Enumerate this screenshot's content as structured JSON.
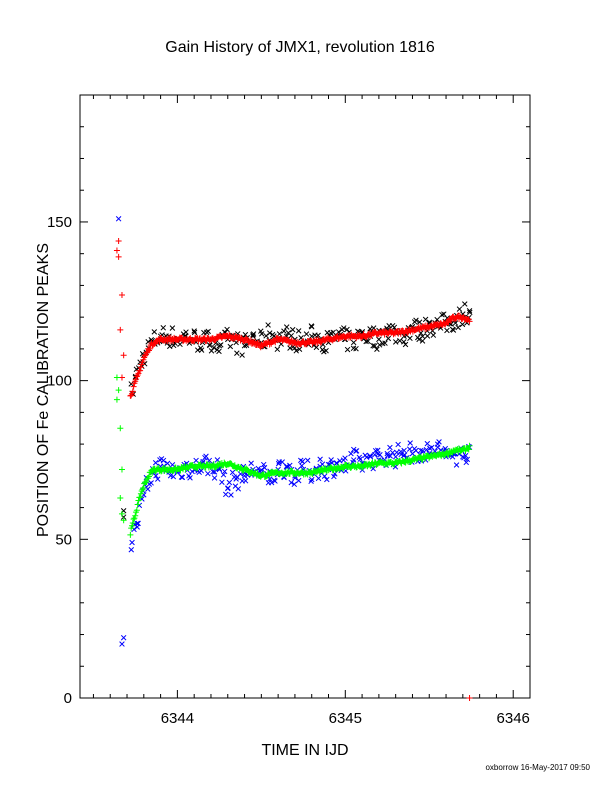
{
  "chart_data": {
    "type": "scatter",
    "title": "Gain History of JMX1, revolution 1816",
    "xlabel": "TIME IN IJD",
    "ylabel": "POSITION OF Fe CALIBRATION PEAKS",
    "xlim": [
      6343.42,
      6346.1
    ],
    "ylim": [
      0,
      190
    ],
    "xticks": [
      6344,
      6345,
      6346
    ],
    "yticks": [
      0,
      50,
      100,
      150
    ],
    "grid": false,
    "legend": "none",
    "footer": "oxborrow 16-May-2017 09:50",
    "colors": {
      "upper_raw": "#000000",
      "upper_fit": "#ff0000",
      "lower_raw": "#0000ff",
      "lower_fit": "#00ff00"
    },
    "early_markers": {
      "black_x": [
        [
          6343.68,
          59
        ],
        [
          6343.68,
          57
        ]
      ],
      "blue_x": [
        [
          6343.65,
          151
        ],
        [
          6343.68,
          19
        ],
        [
          6343.67,
          17
        ]
      ],
      "red_plus": [
        [
          6343.65,
          144
        ],
        [
          6343.64,
          141
        ],
        [
          6343.65,
          139
        ],
        [
          6343.67,
          127
        ],
        [
          6343.66,
          116
        ],
        [
          6343.68,
          108
        ],
        [
          6343.67,
          101
        ]
      ],
      "green_plus": [
        [
          6343.64,
          101
        ],
        [
          6343.65,
          97
        ],
        [
          6343.64,
          94
        ],
        [
          6343.66,
          85
        ],
        [
          6343.67,
          72
        ],
        [
          6343.66,
          63
        ],
        [
          6343.67,
          58
        ],
        [
          6343.68,
          56
        ]
      ],
      "red_plus_end": [
        [
          6345.74,
          0
        ]
      ]
    },
    "series": [
      {
        "marker": "x",
        "color": "#000000",
        "x": [
          6343.73,
          6343.75,
          6343.8,
          6343.85,
          6343.9,
          6343.95,
          6344.0,
          6344.05,
          6344.1,
          6344.15,
          6344.2,
          6344.25,
          6344.3,
          6344.35,
          6344.4,
          6344.45,
          6344.5,
          6344.55,
          6344.6,
          6344.65,
          6344.7,
          6344.75,
          6344.8,
          6344.85,
          6344.9,
          6344.95,
          6345.0,
          6345.05,
          6345.1,
          6345.15,
          6345.2,
          6345.25,
          6345.3,
          6345.35,
          6345.4,
          6345.45,
          6345.5,
          6345.55,
          6345.6,
          6345.65,
          6345.7,
          6345.74
        ],
        "y": [
          96,
          101,
          108,
          112,
          114,
          114,
          113,
          114,
          113,
          112,
          113,
          111,
          113,
          112,
          111,
          114,
          112,
          115,
          113,
          114,
          113,
          112,
          114,
          113,
          112,
          114,
          113,
          112,
          115,
          114,
          113,
          116,
          115,
          114,
          117,
          115,
          118,
          117,
          118,
          119,
          121,
          122
        ]
      },
      {
        "marker": "dense",
        "color": "#ff0000",
        "x": [
          6343.72,
          6343.74,
          6343.76,
          6343.78,
          6343.8,
          6343.82,
          6343.84,
          6343.86,
          6343.9,
          6344.0,
          6344.1,
          6344.2,
          6344.3,
          6344.4,
          6344.5,
          6344.6,
          6344.7,
          6344.8,
          6344.9,
          6345.0,
          6345.1,
          6345.2,
          6345.3,
          6345.4,
          6345.5,
          6345.6,
          6345.65,
          6345.7,
          6345.74
        ],
        "y": [
          95,
          98,
          101,
          104,
          107,
          109,
          111,
          112,
          113,
          113,
          113,
          113,
          114,
          113,
          111,
          113,
          112,
          112,
          113,
          114,
          114,
          115,
          115,
          116,
          117,
          118,
          120,
          120,
          119
        ]
      },
      {
        "marker": "x",
        "color": "#0000ff",
        "x": [
          6343.73,
          6343.76,
          6343.8,
          6343.85,
          6343.9,
          6343.95,
          6344.0,
          6344.05,
          6344.1,
          6344.15,
          6344.2,
          6344.25,
          6344.3,
          6344.35,
          6344.4,
          6344.45,
          6344.5,
          6344.55,
          6344.6,
          6344.65,
          6344.7,
          6344.75,
          6344.8,
          6344.85,
          6344.9,
          6344.95,
          6345.0,
          6345.05,
          6345.1,
          6345.15,
          6345.2,
          6345.25,
          6345.3,
          6345.35,
          6345.4,
          6345.45,
          6345.5,
          6345.55,
          6345.6,
          6345.65,
          6345.7,
          6345.74
        ],
        "y": [
          49,
          55,
          64,
          71,
          73,
          72,
          71,
          73,
          72,
          74,
          73,
          72,
          66,
          69,
          70,
          72,
          71,
          69,
          72,
          73,
          70,
          72,
          71,
          73,
          72,
          74,
          73,
          75,
          74,
          76,
          75,
          77,
          76,
          78,
          77,
          78,
          77,
          79,
          76,
          77,
          76,
          79
        ]
      },
      {
        "marker": "dense",
        "color": "#00ff00",
        "x": [
          6343.72,
          6343.74,
          6343.76,
          6343.78,
          6343.8,
          6343.82,
          6343.84,
          6343.86,
          6343.9,
          6344.0,
          6344.1,
          6344.2,
          6344.3,
          6344.4,
          6344.5,
          6344.6,
          6344.7,
          6344.8,
          6344.9,
          6345.0,
          6345.1,
          6345.2,
          6345.3,
          6345.4,
          6345.5,
          6345.6,
          6345.65,
          6345.7,
          6345.74
        ],
        "y": [
          52,
          56,
          60,
          64,
          67,
          69,
          71,
          72,
          72,
          72,
          73,
          73,
          74,
          72,
          70,
          71,
          71,
          71,
          72,
          73,
          73,
          74,
          74,
          75,
          76,
          77,
          78,
          78,
          79
        ]
      }
    ]
  }
}
